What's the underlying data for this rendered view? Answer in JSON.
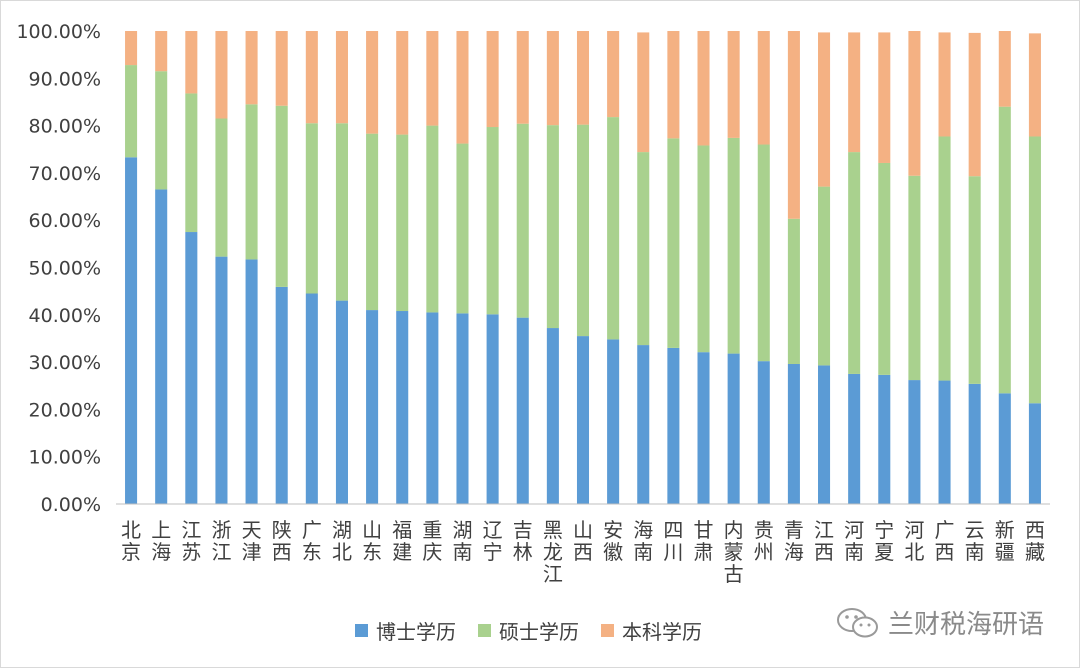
{
  "chart_data": {
    "type": "bar",
    "stacked": true,
    "percent": true,
    "categories": [
      {
        "top": "北",
        "bottom": "京"
      },
      {
        "top": "上",
        "bottom": "海"
      },
      {
        "top": "江",
        "bottom": "苏"
      },
      {
        "top": "浙",
        "bottom": "江"
      },
      {
        "top": "天",
        "bottom": "津"
      },
      {
        "top": "陕",
        "bottom": "西"
      },
      {
        "top": "广",
        "bottom": "东"
      },
      {
        "top": "湖",
        "bottom": "北"
      },
      {
        "top": "山",
        "bottom": "东"
      },
      {
        "top": "福",
        "bottom": "建"
      },
      {
        "top": "重",
        "bottom": "庆"
      },
      {
        "top": "湖",
        "bottom": "南"
      },
      {
        "top": "辽",
        "bottom": "宁"
      },
      {
        "top": "吉",
        "bottom": "林"
      },
      {
        "top": "黑",
        "bottom": "龙",
        "third": "江"
      },
      {
        "top": "山",
        "bottom": "西"
      },
      {
        "top": "安",
        "bottom": "徽"
      },
      {
        "top": "海",
        "bottom": "南"
      },
      {
        "top": "四",
        "bottom": "川"
      },
      {
        "top": "甘",
        "bottom": "肃"
      },
      {
        "top": "内",
        "bottom": "蒙",
        "third": "古"
      },
      {
        "top": "贵",
        "bottom": "州"
      },
      {
        "top": "青",
        "bottom": "海"
      },
      {
        "top": "江",
        "bottom": "西"
      },
      {
        "top": "河",
        "bottom": "南"
      },
      {
        "top": "宁",
        "bottom": "夏"
      },
      {
        "top": "河",
        "bottom": "北"
      },
      {
        "top": "广",
        "bottom": "西"
      },
      {
        "top": "云",
        "bottom": "南"
      },
      {
        "top": "新",
        "bottom": "疆"
      },
      {
        "top": "西",
        "bottom": "藏"
      }
    ],
    "series": [
      {
        "name": "博士学历",
        "color": "#5b9bd5",
        "values": [
          73.3,
          66.5,
          57.5,
          52.3,
          51.7,
          45.9,
          44.5,
          43.0,
          41.0,
          40.8,
          40.5,
          40.3,
          40.1,
          39.4,
          37.2,
          35.5,
          34.8,
          33.6,
          33.0,
          32.1,
          31.8,
          30.2,
          29.6,
          29.3,
          27.5,
          27.3,
          26.2,
          26.1,
          25.4,
          23.4,
          21.3
        ]
      },
      {
        "name": "硕士学历",
        "color": "#a9d18e",
        "values": [
          19.5,
          25.0,
          29.3,
          29.2,
          32.8,
          38.3,
          36.0,
          37.5,
          37.3,
          37.3,
          39.5,
          35.9,
          39.6,
          41.0,
          42.9,
          44.7,
          47.0,
          40.8,
          44.3,
          43.7,
          45.6,
          45.8,
          30.7,
          37.8,
          46.9,
          44.8,
          43.2,
          51.6,
          43.9,
          60.6,
          56.4
        ]
      },
      {
        "name": "本科学历",
        "color": "#f4b183",
        "values": [
          7.2,
          8.5,
          13.2,
          18.5,
          15.5,
          15.8,
          19.5,
          19.5,
          21.7,
          21.9,
          20.0,
          23.8,
          20.3,
          19.6,
          19.9,
          19.8,
          18.2,
          25.3,
          22.7,
          24.2,
          22.6,
          24.0,
          39.7,
          32.6,
          25.3,
          27.6,
          30.6,
          22.0,
          30.3,
          16.0,
          21.8
        ]
      }
    ],
    "y_ticks": [
      "0.00%",
      "10.00%",
      "20.00%",
      "30.00%",
      "40.00%",
      "50.00%",
      "60.00%",
      "70.00%",
      "80.00%",
      "90.00%",
      "100.00%"
    ],
    "ylim": [
      0,
      100
    ],
    "grid": false,
    "legend": "bottom"
  },
  "watermark": {
    "text": "兰财税海研语"
  }
}
